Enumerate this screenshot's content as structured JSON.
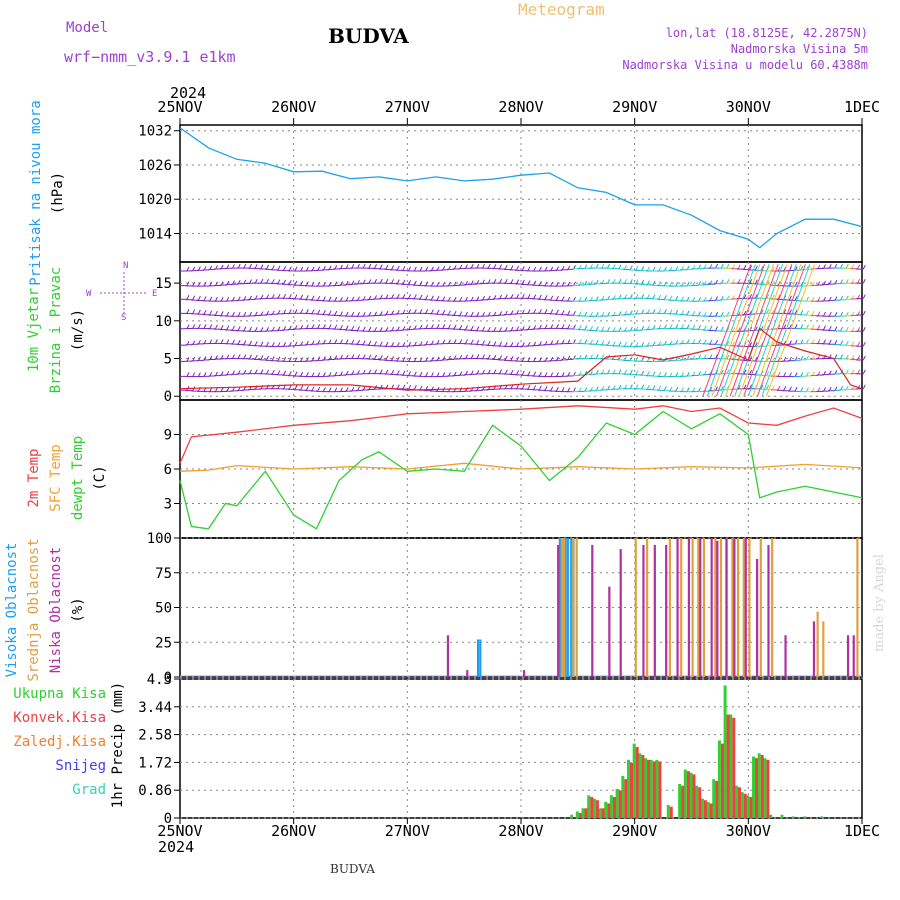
{
  "header": {
    "model_label": "Model",
    "model_name": "wrf−nmm_v3.9.1  e1km",
    "station": "BUDVA",
    "product": "Meteogram",
    "lonlat": "lon,lat (18.8125E, 42.2875N)",
    "elevation": "Nadmorska Visina 5m",
    "model_elevation": "Nadmorska Visina u modelu 60.4388m",
    "year_top": "2024",
    "year_bottom": "2024",
    "footer_station": "BUDVA",
    "credit": "made by Angel"
  },
  "colors": {
    "pressure": "#1ea0f0",
    "temp2m": "#f04040",
    "sfc_temp": "#f0a030",
    "dewpt": "#30d030",
    "wind_speed": "#e02020",
    "axis_label_pressure": "#1ea0f0",
    "model_text": "#a040d0",
    "meteogram_text": "#f0c070"
  },
  "chart_data": [
    {
      "type": "line",
      "panel": "pressure",
      "ylabel_lines": [
        "Pritisak na nivou mora",
        "(hPa)"
      ],
      "ylim": [
        1009,
        1033
      ],
      "yticks": [
        1014,
        1020,
        1026,
        1032
      ],
      "x_ticks": [
        "25NOV",
        "26NOV",
        "27NOV",
        "28NOV",
        "29NOV",
        "30NOV",
        "1DEC"
      ],
      "x_unit": "days since 25NOV 00Z",
      "series": [
        {
          "x": [
            0,
            0.25,
            0.5,
            0.75,
            1.0,
            1.25,
            1.5,
            1.75,
            2.0,
            2.25,
            2.5,
            2.75,
            3.0,
            3.25,
            3.5,
            3.75,
            4.0,
            4.25,
            4.5,
            4.75,
            5.0,
            5.1,
            5.25,
            5.5,
            5.75,
            6.0
          ],
          "y": [
            1032.5,
            1029,
            1027,
            1026.3,
            1024.8,
            1024.9,
            1023.6,
            1023.9,
            1023.2,
            1023.9,
            1023.2,
            1023.5,
            1024.2,
            1024.6,
            1022,
            1021.2,
            1019,
            1019,
            1017.2,
            1014.5,
            1013,
            1011.5,
            1014,
            1016.5,
            1016.5,
            1015.2
          ]
        }
      ]
    },
    {
      "type": "line",
      "panel": "wind",
      "ylabel_lines": [
        "10m Vjetar",
        "Brzina i Pravac",
        "(m/s)"
      ],
      "compass": [
        "N",
        "E",
        "S",
        "W"
      ],
      "ylim": [
        -0.5,
        17.8
      ],
      "yticks": [
        0,
        5,
        10,
        15
      ],
      "series": [
        {
          "name": "speed",
          "x": [
            0,
            0.5,
            1.0,
            1.5,
            2.0,
            2.5,
            3.0,
            3.5,
            3.75,
            4.0,
            4.25,
            4.5,
            4.75,
            5.0,
            5.1,
            5.25,
            5.5,
            5.75,
            5.9,
            6.0
          ],
          "y": [
            1.0,
            1.2,
            1.5,
            1.5,
            0.8,
            1.0,
            1.6,
            2.0,
            5.2,
            5.5,
            4.8,
            5.6,
            6.5,
            4.8,
            9.0,
            7.2,
            6.0,
            5.0,
            1.5,
            1.0
          ]
        }
      ]
    },
    {
      "type": "line",
      "panel": "temperature",
      "ylabel_lines": [
        "2m Temp",
        "SFC Temp",
        "dewpt Temp",
        "(C)"
      ],
      "ylim": [
        0,
        12
      ],
      "yticks": [
        3,
        6,
        9
      ],
      "series": [
        {
          "name": "2m Temp",
          "x": [
            0,
            0.1,
            0.5,
            1.0,
            1.5,
            2.0,
            2.5,
            3.0,
            3.5,
            4.0,
            4.25,
            4.5,
            4.75,
            5.0,
            5.25,
            5.5,
            5.75,
            6.0
          ],
          "y": [
            6.5,
            8.8,
            9.2,
            9.8,
            10.2,
            10.8,
            11.0,
            11.2,
            11.5,
            11.2,
            11.5,
            11.0,
            11.3,
            10.0,
            9.8,
            10.6,
            11.3,
            10.4
          ]
        },
        {
          "name": "SFC Temp",
          "x": [
            0,
            0.25,
            0.5,
            1.0,
            1.5,
            2.0,
            2.5,
            3.0,
            3.5,
            4.0,
            4.5,
            5.0,
            5.5,
            6.0
          ],
          "y": [
            5.8,
            5.9,
            6.3,
            6.0,
            6.2,
            6.0,
            6.5,
            6.0,
            6.2,
            6.0,
            6.2,
            6.1,
            6.4,
            6.1
          ]
        },
        {
          "name": "dewpt Temp",
          "x": [
            0,
            0.1,
            0.25,
            0.4,
            0.5,
            0.75,
            1.0,
            1.2,
            1.4,
            1.6,
            1.75,
            2.0,
            2.25,
            2.5,
            2.75,
            3.0,
            3.25,
            3.5,
            3.75,
            4.0,
            4.25,
            4.5,
            4.75,
            5.0,
            5.1,
            5.25,
            5.5,
            5.75,
            6.0
          ],
          "y": [
            5.0,
            1.0,
            0.8,
            3.0,
            2.8,
            5.8,
            2.0,
            0.8,
            5.0,
            6.8,
            7.5,
            5.8,
            6.0,
            5.8,
            9.8,
            8.0,
            5.0,
            7.0,
            10.0,
            9.0,
            11.0,
            9.5,
            10.8,
            9.0,
            3.5,
            4.0,
            4.5,
            4.0,
            3.5
          ]
        }
      ]
    },
    {
      "type": "bar",
      "panel": "cloud",
      "ylabel_lines": [
        "Visoka Oblacnost",
        "Srednja Oblacnost",
        "Niska Oblacnost",
        "(%)"
      ],
      "ylim": [
        0,
        100
      ],
      "yticks": [
        0,
        25,
        50,
        75,
        100
      ],
      "series": [
        {
          "name": "Visoka",
          "x": [
            2.33,
            2.63,
            2.65,
            3.35,
            3.37,
            3.4,
            3.42,
            3.45,
            3.47
          ],
          "values": [
            0,
            27,
            27,
            100,
            100,
            100,
            100,
            100,
            100
          ]
        },
        {
          "name": "Srednja",
          "x": [
            3.35,
            3.37,
            3.45,
            3.48,
            4.0,
            4.1,
            4.3,
            4.4,
            4.5,
            4.55,
            4.6,
            4.7,
            4.75,
            4.8,
            4.85,
            4.9,
            4.95,
            5.0,
            5.1,
            5.2,
            5.6,
            5.65,
            5.95
          ],
          "values": [
            100,
            100,
            100,
            100,
            100,
            100,
            100,
            100,
            100,
            100,
            100,
            100,
            100,
            100,
            100,
            100,
            100,
            100,
            100,
            100,
            47,
            40,
            100
          ]
        },
        {
          "name": "Niska",
          "x": [
            2.33,
            2.5,
            3.0,
            3.3,
            3.6,
            3.75,
            3.85,
            4.05,
            4.15,
            4.25,
            4.35,
            4.45,
            4.55,
            4.65,
            4.7,
            4.78,
            4.85,
            4.95,
            5.05,
            5.15,
            5.3,
            5.55,
            5.85,
            5.9
          ],
          "values": [
            30,
            5,
            5,
            95,
            95,
            65,
            92,
            95,
            95,
            95,
            100,
            100,
            100,
            100,
            98,
            100,
            100,
            100,
            85,
            95,
            30,
            40,
            30,
            30
          ]
        }
      ]
    },
    {
      "type": "bar",
      "panel": "precip",
      "ylabel_lines": [
        "1hr Precip (mm)"
      ],
      "legend": [
        "Ukupna Kisa",
        "Konvek.Kisa",
        "Zaledj.Kisa",
        "Snijeg",
        "Grad"
      ],
      "legend_colors": [
        "#30d030",
        "#f04040",
        "#f08030",
        "#4040f0",
        "#30d0c0"
      ],
      "ylim": [
        0,
        4.3
      ],
      "yticks": [
        0,
        0.86,
        1.72,
        2.58,
        3.44,
        4.3
      ],
      "series": [
        {
          "name": "Ukupna Kisa",
          "x": [
            3.45,
            3.5,
            3.55,
            3.6,
            3.65,
            3.7,
            3.75,
            3.8,
            3.85,
            3.9,
            3.95,
            4.0,
            4.05,
            4.1,
            4.15,
            4.2,
            4.3,
            4.4,
            4.45,
            4.5,
            4.55,
            4.6,
            4.65,
            4.7,
            4.75,
            4.8,
            4.85,
            4.9,
            4.95,
            5.0,
            5.05,
            5.1,
            5.15,
            5.2,
            5.3,
            5.4,
            5.5,
            5.65
          ],
          "values": [
            0.1,
            0.2,
            0.3,
            0.7,
            0.6,
            0.3,
            0.5,
            0.7,
            0.9,
            1.3,
            1.8,
            2.3,
            2.0,
            1.85,
            1.8,
            1.8,
            0.4,
            1.05,
            1.5,
            1.4,
            1.0,
            0.6,
            0.5,
            1.2,
            2.4,
            4.1,
            3.2,
            1.0,
            0.8,
            0.7,
            1.9,
            2.0,
            1.85,
            0.1,
            0.1,
            0.05,
            0.05,
            0.05
          ]
        },
        {
          "name": "Konvek.Kisa",
          "x": [
            3.5,
            3.55,
            3.6,
            3.65,
            3.7,
            3.75,
            3.8,
            3.85,
            3.9,
            3.95,
            4.0,
            4.05,
            4.1,
            4.15,
            4.2,
            4.3,
            4.4,
            4.45,
            4.5,
            4.55,
            4.6,
            4.65,
            4.7,
            4.75,
            4.8,
            4.85,
            4.9,
            4.95,
            5.0,
            5.05,
            5.1,
            5.15
          ],
          "values": [
            0.15,
            0.3,
            0.65,
            0.55,
            0.3,
            0.45,
            0.65,
            0.85,
            1.2,
            1.7,
            2.2,
            1.95,
            1.8,
            1.75,
            1.75,
            0.35,
            1.0,
            1.45,
            1.35,
            0.95,
            0.55,
            0.45,
            1.15,
            2.3,
            3.2,
            3.1,
            0.95,
            0.75,
            0.65,
            1.85,
            1.95,
            1.8
          ]
        }
      ]
    }
  ]
}
